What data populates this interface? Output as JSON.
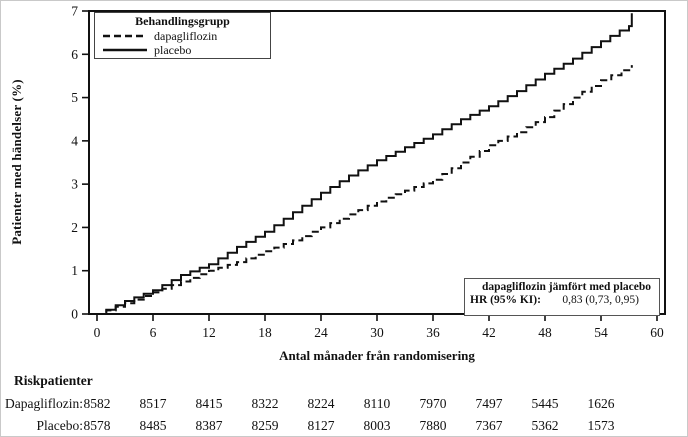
{
  "chart": {
    "y_axis": {
      "label": "Patienter med händelser (%)",
      "min": 0,
      "max": 7,
      "ticks": [
        0,
        1,
        2,
        3,
        4,
        5,
        6,
        7
      ]
    },
    "x_axis": {
      "label": "Antal månader från randomisering",
      "min": 0,
      "max": 60,
      "ticks": [
        0,
        6,
        12,
        18,
        24,
        30,
        36,
        42,
        48,
        54,
        60
      ]
    },
    "legend": {
      "title": "Behandlingsgrupp",
      "items": [
        {
          "label": "dapagliflozin",
          "style": "dashed"
        },
        {
          "label": "placebo",
          "style": "solid"
        }
      ]
    },
    "hr_box": {
      "title": "dapagliflozin jämfört med placebo",
      "label": "HR (95% KI):",
      "value": "0,83 (0,73, 0,95)"
    }
  },
  "chart_data": {
    "type": "line",
    "subtype": "kaplan-meier-cumulative-incidence",
    "title": "",
    "xlabel": "Antal månader från randomisering",
    "ylabel": "Patienter med händelser (%)",
    "xlim": [
      0,
      60
    ],
    "ylim": [
      0,
      7
    ],
    "grid": false,
    "legend_position": "top-left",
    "series": [
      {
        "name": "placebo",
        "style": "solid",
        "color": "#111111",
        "points": [
          [
            0,
            0
          ],
          [
            3,
            0.3
          ],
          [
            6,
            0.55
          ],
          [
            9,
            0.9
          ],
          [
            12,
            1.15
          ],
          [
            15,
            1.55
          ],
          [
            18,
            1.9
          ],
          [
            21,
            2.35
          ],
          [
            24,
            2.8
          ],
          [
            27,
            3.2
          ],
          [
            30,
            3.55
          ],
          [
            33,
            3.85
          ],
          [
            36,
            4.15
          ],
          [
            39,
            4.5
          ],
          [
            42,
            4.8
          ],
          [
            45,
            5.15
          ],
          [
            48,
            5.55
          ],
          [
            51,
            5.9
          ],
          [
            54,
            6.3
          ],
          [
            56,
            6.55
          ],
          [
            57,
            6.65
          ],
          [
            57.3,
            6.95
          ]
        ]
      },
      {
        "name": "dapagliflozin",
        "style": "dashed",
        "color": "#111111",
        "points": [
          [
            0,
            0
          ],
          [
            3,
            0.25
          ],
          [
            6,
            0.5
          ],
          [
            9,
            0.75
          ],
          [
            12,
            1.0
          ],
          [
            15,
            1.2
          ],
          [
            18,
            1.45
          ],
          [
            21,
            1.7
          ],
          [
            24,
            2.0
          ],
          [
            27,
            2.3
          ],
          [
            30,
            2.6
          ],
          [
            33,
            2.85
          ],
          [
            36,
            3.1
          ],
          [
            39,
            3.5
          ],
          [
            42,
            3.9
          ],
          [
            45,
            4.2
          ],
          [
            48,
            4.55
          ],
          [
            51,
            5.0
          ],
          [
            54,
            5.4
          ],
          [
            57.3,
            5.75
          ]
        ]
      }
    ],
    "annotation": {
      "title": "dapagliflozin jämfört med placebo",
      "label": "HR (95% KI):",
      "value": "0,83 (0,73, 0,95)"
    }
  },
  "risk_table": {
    "title": "Riskpatienter",
    "months": [
      0,
      6,
      12,
      18,
      24,
      30,
      36,
      42,
      48,
      54
    ],
    "rows": [
      {
        "label": "Dapagliflozin:",
        "values": [
          "8582",
          "8517",
          "8415",
          "8322",
          "8224",
          "8110",
          "7970",
          "7497",
          "5445",
          "1626"
        ]
      },
      {
        "label": "Placebo:",
        "values": [
          "8578",
          "8485",
          "8387",
          "8259",
          "8127",
          "8003",
          "7880",
          "7367",
          "5362",
          "1573"
        ]
      }
    ]
  },
  "colors": {
    "line": "#111111",
    "frame": "#111111",
    "background": "#ffffff"
  }
}
